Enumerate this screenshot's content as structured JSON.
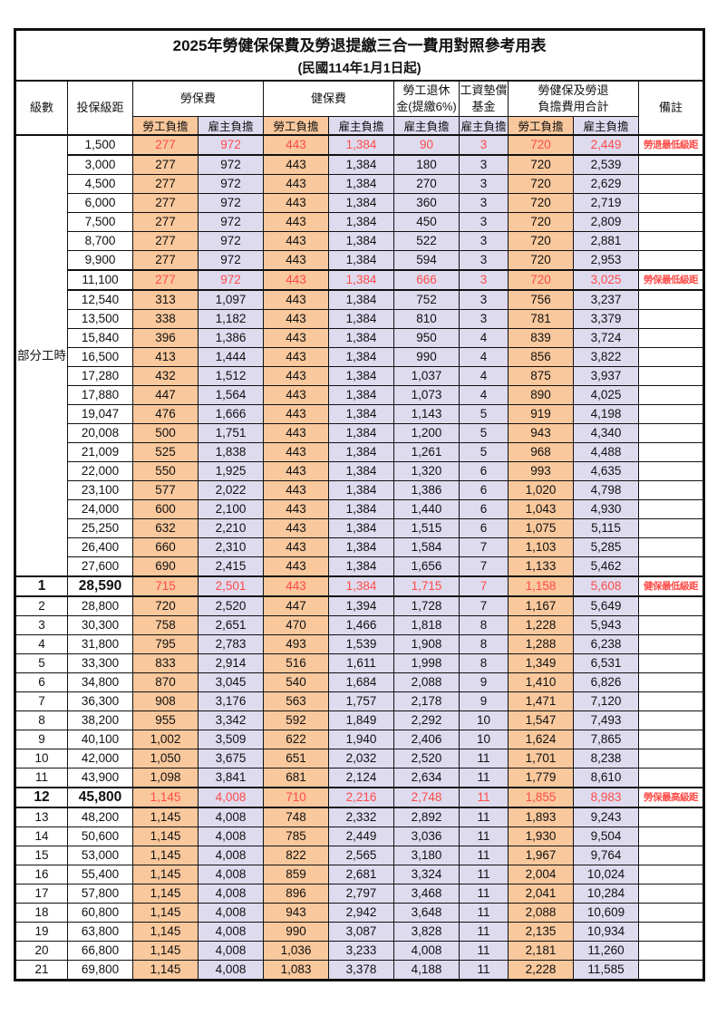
{
  "title": "2025年勞健保保費及勞退提繳三合一費用對照參考用表",
  "subtitle": "(民國114年1月1日起)",
  "header": {
    "level": "級數",
    "salary_bracket": "投保級距",
    "labor_insurance": "勞保費",
    "health_insurance": "健保費",
    "pension": "勞工退休\n金(提繳6%)",
    "wage_fund": "工資墊償\n基金",
    "total": "勞健保及勞退\n負擔費用合計",
    "remark": "備註",
    "employee": "勞工負擔",
    "employer": "雇主負擔"
  },
  "part_time_label": "部分工時",
  "part_time_rowspan": 23,
  "colors": {
    "employee_bg": "#F9C89C",
    "employer_bg": "#DEDBEF",
    "highlight_red": "#FF4B47"
  },
  "remarks_legend": [
    "勞退最低級距",
    "勞保最低級距",
    "健保最低級距",
    "勞保最高級距"
  ],
  "rows": [
    {
      "lv": "",
      "sal": "1,500",
      "le": "277",
      "lr": "972",
      "he": "443",
      "hr": "1,384",
      "pe": "90",
      "fu": "3",
      "te": "720",
      "ter": "2,449",
      "rm": "勞退最低級距",
      "red": true,
      "big": false
    },
    {
      "lv": "",
      "sal": "3,000",
      "le": "277",
      "lr": "972",
      "he": "443",
      "hr": "1,384",
      "pe": "180",
      "fu": "3",
      "te": "720",
      "ter": "2,539",
      "rm": "",
      "red": false,
      "big": false
    },
    {
      "lv": "",
      "sal": "4,500",
      "le": "277",
      "lr": "972",
      "he": "443",
      "hr": "1,384",
      "pe": "270",
      "fu": "3",
      "te": "720",
      "ter": "2,629",
      "rm": "",
      "red": false,
      "big": false
    },
    {
      "lv": "",
      "sal": "6,000",
      "le": "277",
      "lr": "972",
      "he": "443",
      "hr": "1,384",
      "pe": "360",
      "fu": "3",
      "te": "720",
      "ter": "2,719",
      "rm": "",
      "red": false,
      "big": false
    },
    {
      "lv": "",
      "sal": "7,500",
      "le": "277",
      "lr": "972",
      "he": "443",
      "hr": "1,384",
      "pe": "450",
      "fu": "3",
      "te": "720",
      "ter": "2,809",
      "rm": "",
      "red": false,
      "big": false
    },
    {
      "lv": "",
      "sal": "8,700",
      "le": "277",
      "lr": "972",
      "he": "443",
      "hr": "1,384",
      "pe": "522",
      "fu": "3",
      "te": "720",
      "ter": "2,881",
      "rm": "",
      "red": false,
      "big": false
    },
    {
      "lv": "",
      "sal": "9,900",
      "le": "277",
      "lr": "972",
      "he": "443",
      "hr": "1,384",
      "pe": "594",
      "fu": "3",
      "te": "720",
      "ter": "2,953",
      "rm": "",
      "red": false,
      "big": false
    },
    {
      "lv": "",
      "sal": "11,100",
      "le": "277",
      "lr": "972",
      "he": "443",
      "hr": "1,384",
      "pe": "666",
      "fu": "3",
      "te": "720",
      "ter": "3,025",
      "rm": "勞保最低級距",
      "red": true,
      "big": false
    },
    {
      "lv": "",
      "sal": "12,540",
      "le": "313",
      "lr": "1,097",
      "he": "443",
      "hr": "1,384",
      "pe": "752",
      "fu": "3",
      "te": "756",
      "ter": "3,237",
      "rm": "",
      "red": false,
      "big": false
    },
    {
      "lv": "",
      "sal": "13,500",
      "le": "338",
      "lr": "1,182",
      "he": "443",
      "hr": "1,384",
      "pe": "810",
      "fu": "3",
      "te": "781",
      "ter": "3,379",
      "rm": "",
      "red": false,
      "big": false
    },
    {
      "lv": "",
      "sal": "15,840",
      "le": "396",
      "lr": "1,386",
      "he": "443",
      "hr": "1,384",
      "pe": "950",
      "fu": "4",
      "te": "839",
      "ter": "3,724",
      "rm": "",
      "red": false,
      "big": false
    },
    {
      "lv": "",
      "sal": "16,500",
      "le": "413",
      "lr": "1,444",
      "he": "443",
      "hr": "1,384",
      "pe": "990",
      "fu": "4",
      "te": "856",
      "ter": "3,822",
      "rm": "",
      "red": false,
      "big": false
    },
    {
      "lv": "",
      "sal": "17,280",
      "le": "432",
      "lr": "1,512",
      "he": "443",
      "hr": "1,384",
      "pe": "1,037",
      "fu": "4",
      "te": "875",
      "ter": "3,937",
      "rm": "",
      "red": false,
      "big": false
    },
    {
      "lv": "",
      "sal": "17,880",
      "le": "447",
      "lr": "1,564",
      "he": "443",
      "hr": "1,384",
      "pe": "1,073",
      "fu": "4",
      "te": "890",
      "ter": "4,025",
      "rm": "",
      "red": false,
      "big": false
    },
    {
      "lv": "",
      "sal": "19,047",
      "le": "476",
      "lr": "1,666",
      "he": "443",
      "hr": "1,384",
      "pe": "1,143",
      "fu": "5",
      "te": "919",
      "ter": "4,198",
      "rm": "",
      "red": false,
      "big": false
    },
    {
      "lv": "",
      "sal": "20,008",
      "le": "500",
      "lr": "1,751",
      "he": "443",
      "hr": "1,384",
      "pe": "1,200",
      "fu": "5",
      "te": "943",
      "ter": "4,340",
      "rm": "",
      "red": false,
      "big": false
    },
    {
      "lv": "",
      "sal": "21,009",
      "le": "525",
      "lr": "1,838",
      "he": "443",
      "hr": "1,384",
      "pe": "1,261",
      "fu": "5",
      "te": "968",
      "ter": "4,488",
      "rm": "",
      "red": false,
      "big": false
    },
    {
      "lv": "",
      "sal": "22,000",
      "le": "550",
      "lr": "1,925",
      "he": "443",
      "hr": "1,384",
      "pe": "1,320",
      "fu": "6",
      "te": "993",
      "ter": "4,635",
      "rm": "",
      "red": false,
      "big": false
    },
    {
      "lv": "",
      "sal": "23,100",
      "le": "577",
      "lr": "2,022",
      "he": "443",
      "hr": "1,384",
      "pe": "1,386",
      "fu": "6",
      "te": "1,020",
      "ter": "4,798",
      "rm": "",
      "red": false,
      "big": false
    },
    {
      "lv": "",
      "sal": "24,000",
      "le": "600",
      "lr": "2,100",
      "he": "443",
      "hr": "1,384",
      "pe": "1,440",
      "fu": "6",
      "te": "1,043",
      "ter": "4,930",
      "rm": "",
      "red": false,
      "big": false
    },
    {
      "lv": "",
      "sal": "25,250",
      "le": "632",
      "lr": "2,210",
      "he": "443",
      "hr": "1,384",
      "pe": "1,515",
      "fu": "6",
      "te": "1,075",
      "ter": "5,115",
      "rm": "",
      "red": false,
      "big": false
    },
    {
      "lv": "",
      "sal": "26,400",
      "le": "660",
      "lr": "2,310",
      "he": "443",
      "hr": "1,384",
      "pe": "1,584",
      "fu": "7",
      "te": "1,103",
      "ter": "5,285",
      "rm": "",
      "red": false,
      "big": false
    },
    {
      "lv": "",
      "sal": "27,600",
      "le": "690",
      "lr": "2,415",
      "he": "443",
      "hr": "1,384",
      "pe": "1,656",
      "fu": "7",
      "te": "1,133",
      "ter": "5,462",
      "rm": "",
      "red": false,
      "big": false
    },
    {
      "lv": "1",
      "sal": "28,590",
      "le": "715",
      "lr": "2,501",
      "he": "443",
      "hr": "1,384",
      "pe": "1,715",
      "fu": "7",
      "te": "1,158",
      "ter": "5,608",
      "rm": "健保最低級距",
      "red": true,
      "big": true
    },
    {
      "lv": "2",
      "sal": "28,800",
      "le": "720",
      "lr": "2,520",
      "he": "447",
      "hr": "1,394",
      "pe": "1,728",
      "fu": "7",
      "te": "1,167",
      "ter": "5,649",
      "rm": "",
      "red": false,
      "big": false
    },
    {
      "lv": "3",
      "sal": "30,300",
      "le": "758",
      "lr": "2,651",
      "he": "470",
      "hr": "1,466",
      "pe": "1,818",
      "fu": "8",
      "te": "1,228",
      "ter": "5,943",
      "rm": "",
      "red": false,
      "big": false
    },
    {
      "lv": "4",
      "sal": "31,800",
      "le": "795",
      "lr": "2,783",
      "he": "493",
      "hr": "1,539",
      "pe": "1,908",
      "fu": "8",
      "te": "1,288",
      "ter": "6,238",
      "rm": "",
      "red": false,
      "big": false
    },
    {
      "lv": "5",
      "sal": "33,300",
      "le": "833",
      "lr": "2,914",
      "he": "516",
      "hr": "1,611",
      "pe": "1,998",
      "fu": "8",
      "te": "1,349",
      "ter": "6,531",
      "rm": "",
      "red": false,
      "big": false
    },
    {
      "lv": "6",
      "sal": "34,800",
      "le": "870",
      "lr": "3,045",
      "he": "540",
      "hr": "1,684",
      "pe": "2,088",
      "fu": "9",
      "te": "1,410",
      "ter": "6,826",
      "rm": "",
      "red": false,
      "big": false
    },
    {
      "lv": "7",
      "sal": "36,300",
      "le": "908",
      "lr": "3,176",
      "he": "563",
      "hr": "1,757",
      "pe": "2,178",
      "fu": "9",
      "te": "1,471",
      "ter": "7,120",
      "rm": "",
      "red": false,
      "big": false
    },
    {
      "lv": "8",
      "sal": "38,200",
      "le": "955",
      "lr": "3,342",
      "he": "592",
      "hr": "1,849",
      "pe": "2,292",
      "fu": "10",
      "te": "1,547",
      "ter": "7,493",
      "rm": "",
      "red": false,
      "big": false
    },
    {
      "lv": "9",
      "sal": "40,100",
      "le": "1,002",
      "lr": "3,509",
      "he": "622",
      "hr": "1,940",
      "pe": "2,406",
      "fu": "10",
      "te": "1,624",
      "ter": "7,865",
      "rm": "",
      "red": false,
      "big": false
    },
    {
      "lv": "10",
      "sal": "42,000",
      "le": "1,050",
      "lr": "3,675",
      "he": "651",
      "hr": "2,032",
      "pe": "2,520",
      "fu": "11",
      "te": "1,701",
      "ter": "8,238",
      "rm": "",
      "red": false,
      "big": false
    },
    {
      "lv": "11",
      "sal": "43,900",
      "le": "1,098",
      "lr": "3,841",
      "he": "681",
      "hr": "2,124",
      "pe": "2,634",
      "fu": "11",
      "te": "1,779",
      "ter": "8,610",
      "rm": "",
      "red": false,
      "big": false
    },
    {
      "lv": "12",
      "sal": "45,800",
      "le": "1,145",
      "lr": "4,008",
      "he": "710",
      "hr": "2,216",
      "pe": "2,748",
      "fu": "11",
      "te": "1,855",
      "ter": "8,983",
      "rm": "勞保最高級距",
      "red": true,
      "big": true
    },
    {
      "lv": "13",
      "sal": "48,200",
      "le": "1,145",
      "lr": "4,008",
      "he": "748",
      "hr": "2,332",
      "pe": "2,892",
      "fu": "11",
      "te": "1,893",
      "ter": "9,243",
      "rm": "",
      "red": false,
      "big": false
    },
    {
      "lv": "14",
      "sal": "50,600",
      "le": "1,145",
      "lr": "4,008",
      "he": "785",
      "hr": "2,449",
      "pe": "3,036",
      "fu": "11",
      "te": "1,930",
      "ter": "9,504",
      "rm": "",
      "red": false,
      "big": false
    },
    {
      "lv": "15",
      "sal": "53,000",
      "le": "1,145",
      "lr": "4,008",
      "he": "822",
      "hr": "2,565",
      "pe": "3,180",
      "fu": "11",
      "te": "1,967",
      "ter": "9,764",
      "rm": "",
      "red": false,
      "big": false
    },
    {
      "lv": "16",
      "sal": "55,400",
      "le": "1,145",
      "lr": "4,008",
      "he": "859",
      "hr": "2,681",
      "pe": "3,324",
      "fu": "11",
      "te": "2,004",
      "ter": "10,024",
      "rm": "",
      "red": false,
      "big": false
    },
    {
      "lv": "17",
      "sal": "57,800",
      "le": "1,145",
      "lr": "4,008",
      "he": "896",
      "hr": "2,797",
      "pe": "3,468",
      "fu": "11",
      "te": "2,041",
      "ter": "10,284",
      "rm": "",
      "red": false,
      "big": false
    },
    {
      "lv": "18",
      "sal": "60,800",
      "le": "1,145",
      "lr": "4,008",
      "he": "943",
      "hr": "2,942",
      "pe": "3,648",
      "fu": "11",
      "te": "2,088",
      "ter": "10,609",
      "rm": "",
      "red": false,
      "big": false
    },
    {
      "lv": "19",
      "sal": "63,800",
      "le": "1,145",
      "lr": "4,008",
      "he": "990",
      "hr": "3,087",
      "pe": "3,828",
      "fu": "11",
      "te": "2,135",
      "ter": "10,934",
      "rm": "",
      "red": false,
      "big": false
    },
    {
      "lv": "20",
      "sal": "66,800",
      "le": "1,145",
      "lr": "4,008",
      "he": "1,036",
      "hr": "3,233",
      "pe": "4,008",
      "fu": "11",
      "te": "2,181",
      "ter": "11,260",
      "rm": "",
      "red": false,
      "big": false
    },
    {
      "lv": "21",
      "sal": "69,800",
      "le": "1,145",
      "lr": "4,008",
      "he": "1,083",
      "hr": "3,378",
      "pe": "4,188",
      "fu": "11",
      "te": "2,228",
      "ter": "11,585",
      "rm": "",
      "red": false,
      "big": false
    }
  ]
}
